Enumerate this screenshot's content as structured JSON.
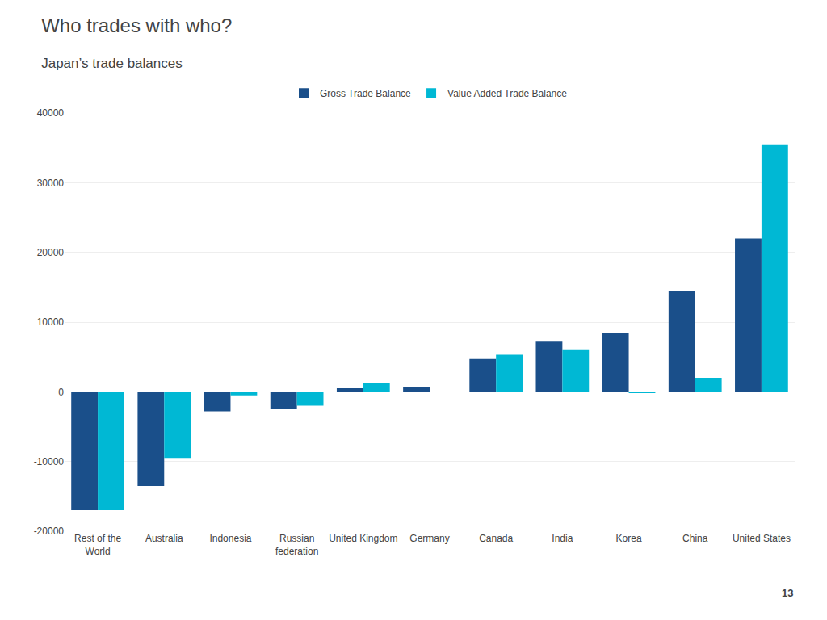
{
  "chart_data": {
    "type": "bar",
    "title": "Who trades with who?",
    "subtitle": "Japan’s trade balances",
    "categories": [
      "Rest of the\nWorld",
      "Australia",
      "Indonesia",
      "Russian\nfederation",
      "United Kingdom",
      "Germany",
      "Canada",
      "India",
      "Korea",
      "China",
      "United States"
    ],
    "series": [
      {
        "name": "Gross Trade Balance",
        "color": "#1a4f8a",
        "values": [
          -17000,
          -13500,
          -2800,
          -2500,
          500,
          700,
          4700,
          7200,
          8500,
          14500,
          22000
        ]
      },
      {
        "name": "Value Added Trade Balance",
        "color": "#00b8d4",
        "values": [
          -17000,
          -9500,
          -500,
          -2000,
          1300,
          0,
          5300,
          6100,
          -200,
          2000,
          35500
        ]
      }
    ],
    "ylim": [
      -20000,
      40000
    ],
    "yticks": [
      -20000,
      -10000,
      0,
      10000,
      20000,
      30000,
      40000
    ],
    "grid": true,
    "legend": "top",
    "annotations": [
      "13"
    ]
  }
}
